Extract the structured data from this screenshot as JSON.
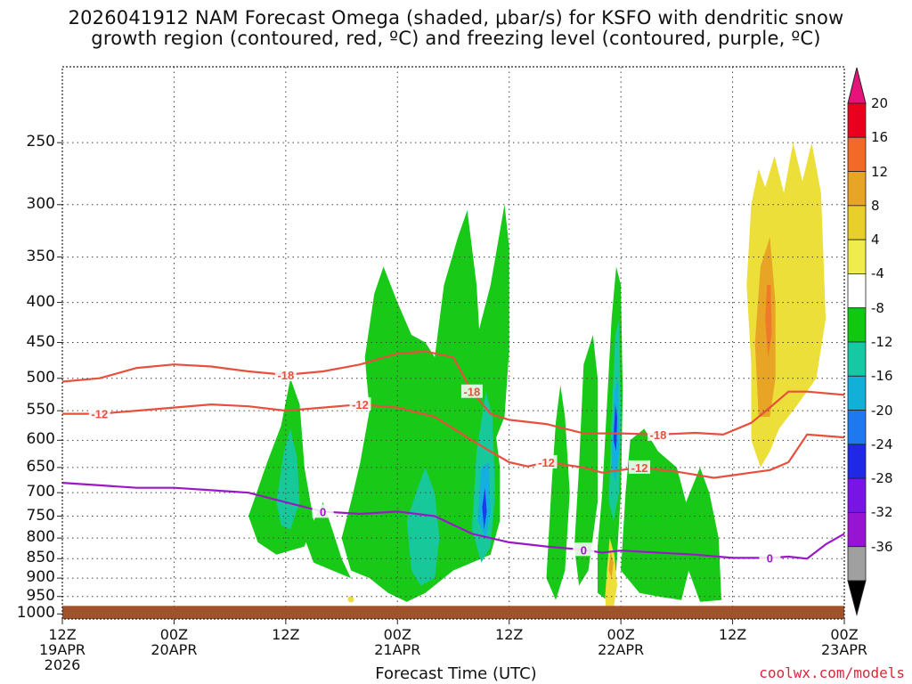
{
  "chart_data": {
    "type": "heatmap",
    "title_line1": "2026041912 NAM Forecast Omega (shaded, μbar/s) for KSFO with dendritic snow",
    "title_line2": "growth region (contoured, red, ºC) and freezing level (contoured, purple, ºC)",
    "xlabel": "Forecast Time (UTC)",
    "credit": "coolwx.com/models",
    "x_ticks": [
      {
        "hour": 0,
        "line1": "12Z",
        "line2": "19APR",
        "line3": "2026"
      },
      {
        "hour": 12,
        "line1": "00Z",
        "line2": "20APR",
        "line3": ""
      },
      {
        "hour": 24,
        "line1": "12Z",
        "line2": "",
        "line3": ""
      },
      {
        "hour": 36,
        "line1": "00Z",
        "line2": "21APR",
        "line3": ""
      },
      {
        "hour": 48,
        "line1": "12Z",
        "line2": "",
        "line3": ""
      },
      {
        "hour": 60,
        "line1": "00Z",
        "line2": "22APR",
        "line3": ""
      },
      {
        "hour": 72,
        "line1": "12Z",
        "line2": "",
        "line3": ""
      },
      {
        "hour": 84,
        "line1": "00Z",
        "line2": "23APR",
        "line3": ""
      }
    ],
    "xlim": [
      0,
      84
    ],
    "y_ticks": [
      "250",
      "300",
      "350",
      "400",
      "450",
      "500",
      "550",
      "600",
      "650",
      "700",
      "750",
      "800",
      "850",
      "900",
      "950",
      "1000"
    ],
    "y_tick_values": [
      250,
      300,
      350,
      400,
      450,
      500,
      550,
      600,
      650,
      700,
      750,
      800,
      850,
      900,
      950,
      1000
    ],
    "ylim": [
      200,
      1015
    ],
    "y_scale": "log, inverted",
    "grid": true,
    "colorbar": {
      "labels": [
        "20",
        "16",
        "12",
        "8",
        "4",
        "-4",
        "-8",
        "-12",
        "-16",
        "-20",
        "-24",
        "-28",
        "-32",
        "-36"
      ],
      "colors": [
        "#e8001e",
        "#f36a28",
        "#e8a424",
        "#e9cf29",
        "#f0ec4c",
        "#ffffff",
        "#10c810",
        "#14c9a4",
        "#10b0d8",
        "#1e78f0",
        "#1e28e6",
        "#7814e6",
        "#9614d2",
        "#a0a0a0",
        "#000000"
      ],
      "top_arrow_color": "#e6147a"
    },
    "series": [
      {
        "name": "-18",
        "color": "#e6503c",
        "x": [
          0,
          4,
          8,
          12,
          16,
          20,
          24,
          28,
          32,
          36,
          39,
          42,
          44,
          46,
          48,
          52,
          56,
          60,
          64,
          68,
          71,
          74,
          76,
          78,
          80,
          84
        ],
        "y": [
          505,
          500,
          485,
          480,
          483,
          490,
          495,
          490,
          480,
          465,
          462,
          470,
          520,
          555,
          565,
          572,
          588,
          588,
          590,
          587,
          590,
          570,
          545,
          520,
          520,
          525
        ]
      },
      {
        "name": "-12",
        "color": "#e6503c",
        "x": [
          0,
          4,
          8,
          12,
          16,
          20,
          24,
          28,
          32,
          36,
          40,
          44,
          46,
          48,
          50,
          52,
          54,
          56,
          58,
          60,
          62,
          66,
          70,
          72,
          74,
          76,
          78,
          80,
          84
        ],
        "y": [
          555,
          555,
          550,
          545,
          540,
          543,
          550,
          545,
          540,
          545,
          560,
          600,
          620,
          640,
          648,
          640,
          645,
          650,
          660,
          655,
          650,
          658,
          670,
          665,
          660,
          655,
          640,
          590,
          595
        ]
      },
      {
        "name": "0",
        "color": "#9a18c8",
        "x": [
          0,
          4,
          8,
          12,
          16,
          20,
          24,
          28,
          32,
          36,
          40,
          44,
          48,
          52,
          56,
          58,
          60,
          64,
          68,
          72,
          76,
          78,
          80,
          82,
          84
        ],
        "y": [
          680,
          685,
          690,
          690,
          695,
          700,
          720,
          740,
          745,
          740,
          750,
          790,
          810,
          820,
          828,
          835,
          830,
          835,
          840,
          848,
          848,
          845,
          850,
          815,
          790
        ]
      }
    ]
  }
}
